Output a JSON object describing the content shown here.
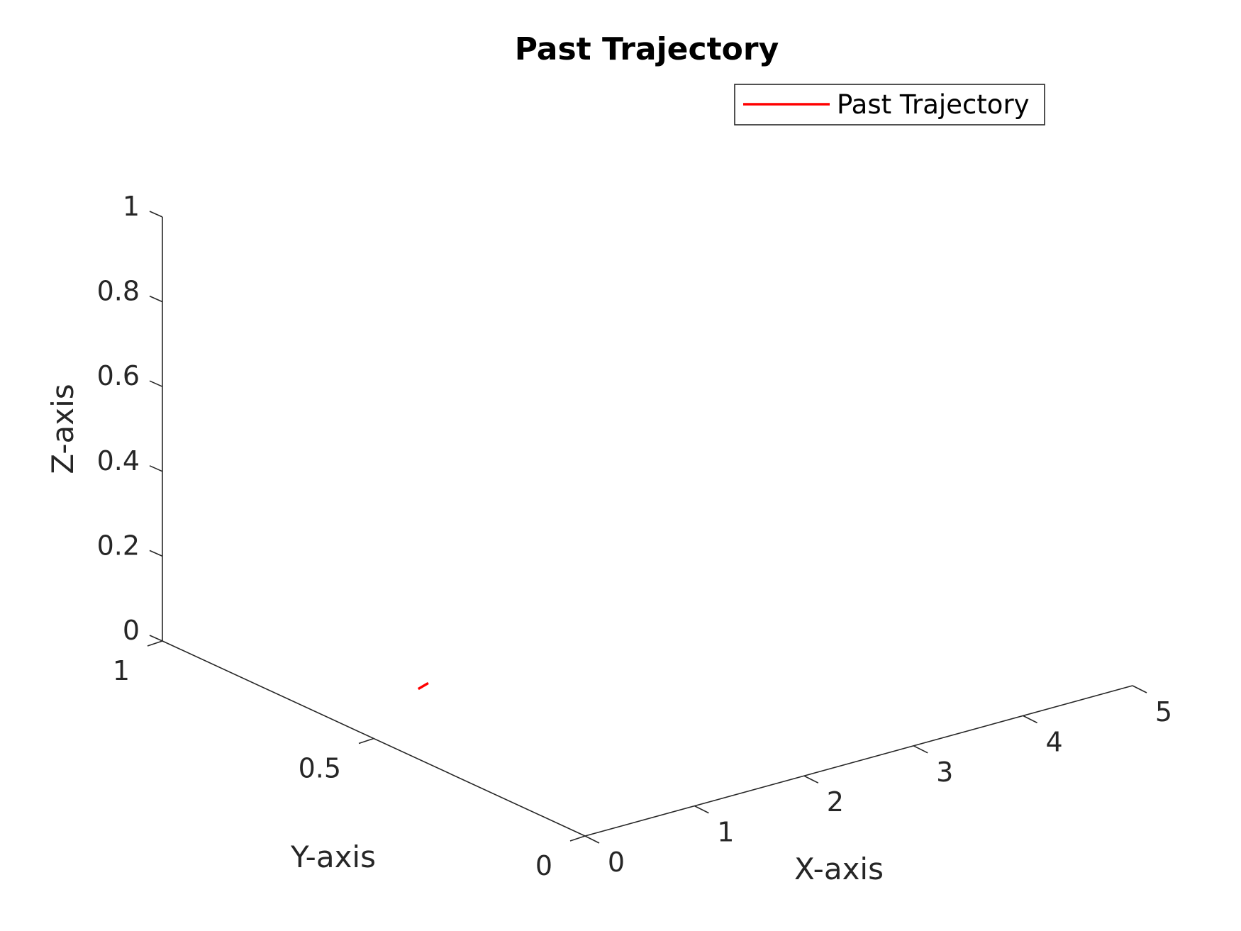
{
  "chart_data": {
    "type": "line",
    "title": "Past Trajectory",
    "xlabel": "X-axis",
    "ylabel": "Y-axis",
    "zlabel": "Z-axis",
    "xlim": [
      0,
      5
    ],
    "ylim": [
      0,
      1
    ],
    "zlim": [
      0,
      1
    ],
    "xticks": [
      "0",
      "1",
      "2",
      "3",
      "4",
      "5"
    ],
    "yticks": [
      "0",
      "0.5",
      "1"
    ],
    "zticks": [
      "0",
      "0.2",
      "0.4",
      "0.6",
      "0.8",
      "1"
    ],
    "grid": false,
    "legend_position": "top-right",
    "series": [
      {
        "name": "Past Trajectory",
        "color": "#ff0000",
        "x": [
          0.87,
          1.0
        ],
        "y": [
          0.62,
          0.63
        ],
        "z": [
          0,
          0
        ]
      }
    ]
  }
}
